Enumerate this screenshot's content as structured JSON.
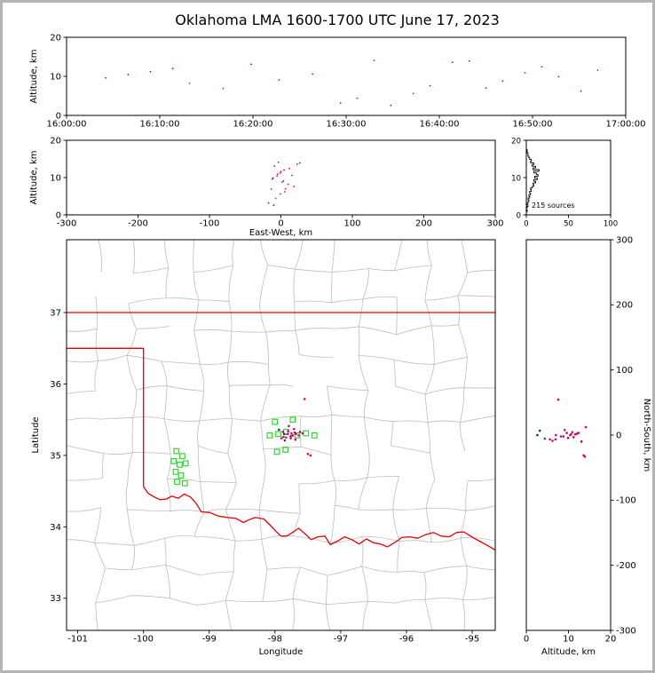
{
  "title": "Oklahoma LMA 1600-1700 UTC June 17, 2023",
  "panels": {
    "time_height": {
      "ylabel": "Altitude, km",
      "yticks": [
        "20",
        "10",
        "0"
      ],
      "xticks": [
        "16:00:00",
        "16:10:00",
        "16:20:00",
        "16:30:00",
        "16:40:00",
        "16:50:00",
        "17:00:00"
      ]
    },
    "ew_height": {
      "ylabel": "Altitude, km",
      "xlabel": "East-West, km",
      "yticks": [
        "20",
        "10",
        "0"
      ],
      "xticks": [
        "-300",
        "-200",
        "-100",
        "0",
        "100",
        "200",
        "300"
      ]
    },
    "histogram": {
      "annotation": "215 sources",
      "yticks": [
        "20",
        "10",
        "0"
      ],
      "xticks": [
        "0",
        "50",
        "100"
      ]
    },
    "map": {
      "xlabel": "Longitude",
      "ylabel": "Latitude",
      "xticks": [
        "-101",
        "-100",
        "-99",
        "-98",
        "-97",
        "-96",
        "-95"
      ],
      "yticks": [
        "37",
        "36",
        "35",
        "34",
        "33"
      ]
    },
    "ns_height": {
      "xlabel": "Altitude, km",
      "ylabel": "North-South, km",
      "xticks": [
        "0",
        "10",
        "20"
      ],
      "yticks": [
        "300",
        "200",
        "100",
        "0",
        "-100",
        "-200",
        "-300"
      ]
    }
  },
  "chart_data": {
    "type": "scatter",
    "title": "Oklahoma LMA 1600-1700 UTC June 17, 2023",
    "source_count": 215,
    "time_range_utc": [
      "16:00:00",
      "17:00:00"
    ],
    "altitude_range_km": [
      0,
      20
    ],
    "ew_range_km": [
      -300,
      300
    ],
    "ns_range_km": [
      -300,
      300
    ],
    "count_range": [
      0,
      100
    ],
    "lon_range": [
      -101.17,
      -94.65
    ],
    "lat_range": [
      32.55,
      38.02
    ],
    "colors": {
      "state_border": "#e60000",
      "county": "#bdbdbd",
      "station": "#2fd82f",
      "histogram": "#000000"
    },
    "stations": [
      [
        -99.5,
        35.06
      ],
      [
        -99.41,
        34.99
      ],
      [
        -99.54,
        34.92
      ],
      [
        -99.45,
        34.87
      ],
      [
        -99.36,
        34.89
      ],
      [
        -99.51,
        34.77
      ],
      [
        -99.43,
        34.72
      ],
      [
        -99.49,
        34.63
      ],
      [
        -99.37,
        34.61
      ],
      [
        -98.0,
        35.47
      ],
      [
        -97.73,
        35.5
      ],
      [
        -98.08,
        35.28
      ],
      [
        -97.95,
        35.3
      ],
      [
        -97.83,
        35.33
      ],
      [
        -97.66,
        35.28
      ],
      [
        -97.53,
        35.31
      ],
      [
        -97.4,
        35.28
      ],
      [
        -97.97,
        35.05
      ],
      [
        -97.84,
        35.08
      ]
    ],
    "sources": [
      {
        "t": 0.07,
        "lon": -97.88,
        "lat": 35.33,
        "alt": 9.6,
        "ew": -11.8,
        "ns": 3.3,
        "c": "#d4006a"
      },
      {
        "t": 0.11,
        "lon": -97.81,
        "lat": 35.3,
        "alt": 10.4,
        "ew": -5.5,
        "ns": 0.0,
        "c": "#cc0077"
      },
      {
        "t": 0.15,
        "lon": -97.76,
        "lat": 35.27,
        "alt": 11.2,
        "ew": -0.9,
        "ns": -3.3,
        "c": "#c00060"
      },
      {
        "t": 0.19,
        "lon": -97.7,
        "lat": 35.32,
        "alt": 12.0,
        "ew": 4.5,
        "ns": 2.2,
        "c": "#b8004f"
      },
      {
        "t": 0.22,
        "lon": -97.64,
        "lat": 35.28,
        "alt": 8.2,
        "ew": 10.0,
        "ns": -2.2,
        "c": "#d01080"
      },
      {
        "t": 0.28,
        "lon": -97.9,
        "lat": 35.24,
        "alt": 6.9,
        "ew": -13.6,
        "ns": -6.7,
        "c": "#e0007f"
      },
      {
        "t": 0.33,
        "lon": -97.85,
        "lat": 35.21,
        "alt": 13.1,
        "ew": -9.1,
        "ns": -10.0,
        "c": "#aa0033"
      },
      {
        "t": 0.38,
        "lon": -97.71,
        "lat": 35.37,
        "alt": 9.1,
        "ew": 3.6,
        "ns": 7.8,
        "c": "#d6006e"
      },
      {
        "t": 0.44,
        "lon": -97.58,
        "lat": 35.31,
        "alt": 10.6,
        "ew": 15.5,
        "ns": 1.1,
        "c": "#cc0066"
      },
      {
        "t": 0.49,
        "lon": -97.94,
        "lat": 35.36,
        "alt": 3.2,
        "ew": -17.3,
        "ns": 6.7,
        "c": "#2a2aa8"
      },
      {
        "t": 0.52,
        "lon": -97.83,
        "lat": 35.25,
        "alt": 4.4,
        "ew": -7.3,
        "ns": -5.6,
        "c": "#157a33"
      },
      {
        "t": 0.55,
        "lon": -97.79,
        "lat": 35.41,
        "alt": 14.1,
        "ew": -3.6,
        "ns": 12.2,
        "c": "#d4006a"
      },
      {
        "t": 0.58,
        "lon": -97.86,
        "lat": 35.3,
        "alt": 2.6,
        "ew": -10.0,
        "ns": 0.0,
        "c": "#23238c"
      },
      {
        "t": 0.62,
        "lon": -97.76,
        "lat": 35.24,
        "alt": 5.6,
        "ew": -0.9,
        "ns": -6.7,
        "c": "#cf0a70"
      },
      {
        "t": 0.65,
        "lon": -97.55,
        "lat": 35.79,
        "alt": 7.6,
        "ew": 18.2,
        "ns": 54.4,
        "c": "#e00060"
      },
      {
        "t": 0.69,
        "lon": -97.5,
        "lat": 35.02,
        "alt": 13.6,
        "ew": 22.7,
        "ns": -31.1,
        "c": "#d00070"
      },
      {
        "t": 0.72,
        "lon": -97.46,
        "lat": 35.0,
        "alt": 13.9,
        "ew": 26.4,
        "ns": -33.3,
        "c": "#cc0066"
      },
      {
        "t": 0.75,
        "lon": -97.68,
        "lat": 35.3,
        "alt": 7.0,
        "ew": 6.4,
        "ns": 0.0,
        "c": "#d00866"
      },
      {
        "t": 0.78,
        "lon": -97.73,
        "lat": 35.28,
        "alt": 8.8,
        "ew": 1.8,
        "ns": -2.2,
        "c": "#c80462"
      },
      {
        "t": 0.82,
        "lon": -97.8,
        "lat": 35.34,
        "alt": 10.9,
        "ew": -4.5,
        "ns": 4.4,
        "c": "#d2066c"
      },
      {
        "t": 0.85,
        "lon": -97.62,
        "lat": 35.33,
        "alt": 12.4,
        "ew": 11.8,
        "ns": 3.3,
        "c": "#cb0168"
      },
      {
        "t": 0.88,
        "lon": -97.87,
        "lat": 35.26,
        "alt": 9.9,
        "ew": -10.9,
        "ns": -4.4,
        "c": "#c6005e"
      },
      {
        "t": 0.92,
        "lon": -97.69,
        "lat": 35.22,
        "alt": 6.2,
        "ew": 5.5,
        "ns": -8.9,
        "c": "#d40372"
      },
      {
        "t": 0.95,
        "lon": -97.75,
        "lat": 35.31,
        "alt": 11.6,
        "ew": 0.0,
        "ns": 1.1,
        "c": "#ce0064"
      }
    ],
    "altitude_histogram": {
      "start_km": 0,
      "bin_km": 0.45,
      "counts": [
        0,
        0,
        1,
        0,
        1,
        2,
        1,
        2,
        3,
        2,
        4,
        3,
        5,
        4,
        6,
        5,
        7,
        9,
        8,
        11,
        9,
        13,
        10,
        14,
        12,
        9,
        15,
        8,
        11,
        7,
        9,
        5,
        6,
        4,
        3,
        2,
        2,
        1,
        1,
        0
      ]
    },
    "state_border": {
      "north_border_lat": 37.0,
      "panhandle_south_lat": 36.5,
      "west_border_lon": -100.0,
      "red_river": [
        [
          -100.0,
          34.56
        ],
        [
          -99.93,
          34.47
        ],
        [
          -99.84,
          34.42
        ],
        [
          -99.75,
          34.38
        ],
        [
          -99.65,
          34.39
        ],
        [
          -99.57,
          34.43
        ],
        [
          -99.47,
          34.4
        ],
        [
          -99.38,
          34.46
        ],
        [
          -99.29,
          34.42
        ],
        [
          -99.2,
          34.33
        ],
        [
          -99.12,
          34.21
        ],
        [
          -98.99,
          34.2
        ],
        [
          -98.86,
          34.15
        ],
        [
          -98.72,
          34.13
        ],
        [
          -98.6,
          34.12
        ],
        [
          -98.48,
          34.06
        ],
        [
          -98.39,
          34.1
        ],
        [
          -98.3,
          34.13
        ],
        [
          -98.17,
          34.11
        ],
        [
          -98.08,
          34.03
        ],
        [
          -97.99,
          33.94
        ],
        [
          -97.91,
          33.87
        ],
        [
          -97.82,
          33.87
        ],
        [
          -97.72,
          33.93
        ],
        [
          -97.64,
          33.98
        ],
        [
          -97.54,
          33.9
        ],
        [
          -97.45,
          33.82
        ],
        [
          -97.35,
          33.86
        ],
        [
          -97.24,
          33.87
        ],
        [
          -97.16,
          33.75
        ],
        [
          -97.05,
          33.8
        ],
        [
          -96.94,
          33.86
        ],
        [
          -96.83,
          33.82
        ],
        [
          -96.72,
          33.76
        ],
        [
          -96.61,
          33.83
        ],
        [
          -96.51,
          33.78
        ],
        [
          -96.4,
          33.76
        ],
        [
          -96.29,
          33.72
        ],
        [
          -96.18,
          33.78
        ],
        [
          -96.07,
          33.85
        ],
        [
          -95.95,
          33.86
        ],
        [
          -95.83,
          33.84
        ],
        [
          -95.71,
          33.89
        ],
        [
          -95.59,
          33.92
        ],
        [
          -95.47,
          33.87
        ],
        [
          -95.35,
          33.86
        ],
        [
          -95.24,
          33.92
        ],
        [
          -95.13,
          33.93
        ],
        [
          -95.01,
          33.86
        ],
        [
          -94.89,
          33.8
        ],
        [
          -94.77,
          33.74
        ],
        [
          -94.64,
          33.67
        ]
      ]
    }
  }
}
